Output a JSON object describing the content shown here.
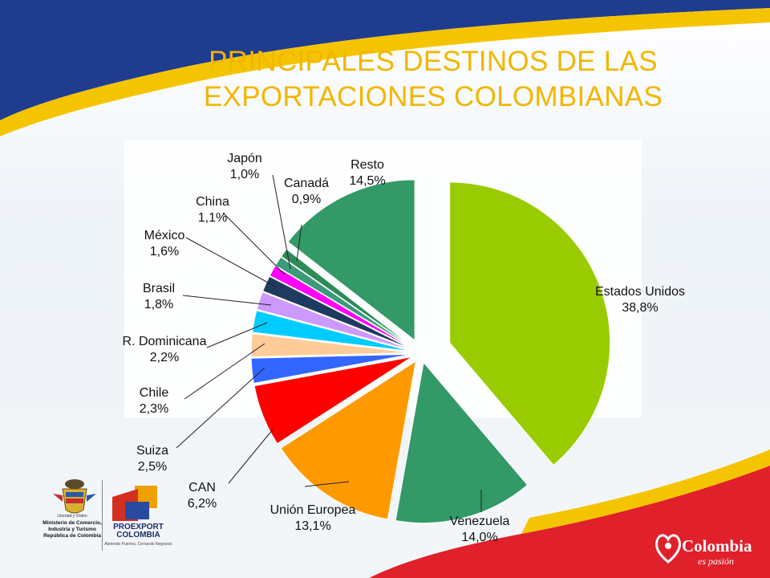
{
  "title_line1": "PRINCIPALES DESTINOS DE LAS",
  "title_line2": "EXPORTACIONES COLOMBIANAS",
  "chart_data": {
    "type": "pie",
    "title": "PRINCIPALES DESTINOS DE LAS EXPORTACIONES COLOMBIANAS",
    "slices": [
      {
        "label": "Estados Unidos",
        "value_text": "38,8%",
        "value": 38.8,
        "color": "#99cc00"
      },
      {
        "label": "Venezuela",
        "value_text": "14,0%",
        "value": 14.0,
        "color": "#339966"
      },
      {
        "label": "Unión Europea",
        "value_text": "13,1%",
        "value": 13.1,
        "color": "#ff9900"
      },
      {
        "label": "CAN",
        "value_text": "6,2%",
        "value": 6.2,
        "color": "#ff0000"
      },
      {
        "label": "Suiza",
        "value_text": "2,5%",
        "value": 2.5,
        "color": "#3366ff"
      },
      {
        "label": "Chile",
        "value_text": "2,3%",
        "value": 2.3,
        "color": "#ffcc99"
      },
      {
        "label": "R. Dominicana",
        "value_text": "2,2%",
        "value": 2.2,
        "color": "#00ccff"
      },
      {
        "label": "Brasil",
        "value_text": "1,8%",
        "value": 1.8,
        "color": "#cc99ff"
      },
      {
        "label": "México",
        "value_text": "1,6%",
        "value": 1.6,
        "color": "#1f3a5f"
      },
      {
        "label": "China",
        "value_text": "1,1%",
        "value": 1.1,
        "color": "#ff00ff"
      },
      {
        "label": "Japón",
        "value_text": "1,0%",
        "value": 1.0,
        "color": "#3a9a7a"
      },
      {
        "label": "Canadá",
        "value_text": "0,9%",
        "value": 0.9,
        "color": "#2e8b57"
      },
      {
        "label": "Resto",
        "value_text": "14,5%",
        "value": 14.5,
        "color": "#339966"
      }
    ]
  },
  "logos": {
    "ministry_motto": "Libertad y Orden",
    "ministry_lines": [
      "Ministerio de Comercio,",
      "Industria y Turismo",
      "República de Colombia"
    ],
    "proexport_name_1": "PROEXPORT",
    "proexport_name_2": "COLOMBIA",
    "proexport_tagline": "Abriendo Puertos, Cerrando Negocios",
    "colombia_brand": "Colombia",
    "colombia_tagline": "es pasión"
  },
  "colors": {
    "title": "#f2b600",
    "band_blue": "#1f3c8f",
    "band_yellow": "#f5c400",
    "band_red": "#e0202a"
  }
}
